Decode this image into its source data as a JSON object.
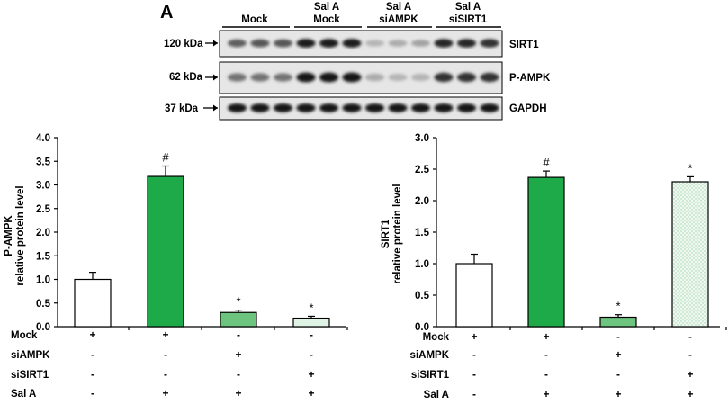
{
  "panel_label": "A",
  "blot": {
    "groups": [
      {
        "line1": "",
        "line2": "Mock"
      },
      {
        "line1": "Sal A",
        "line2": "Mock"
      },
      {
        "line1": "Sal A",
        "line2": "siAMPK"
      },
      {
        "line1": "Sal A",
        "line2": "siSIRT1"
      }
    ],
    "rows": [
      {
        "size": "120 kDa",
        "protein": "SIRT1",
        "intensity": [
          0.55,
          0.6,
          0.6,
          0.9,
          0.9,
          0.9,
          0.1,
          0.15,
          0.2,
          0.85,
          0.85,
          0.8
        ]
      },
      {
        "size": "62 kDa",
        "protein": "P-AMPK",
        "intensity": [
          0.45,
          0.45,
          0.45,
          0.95,
          0.95,
          0.95,
          0.15,
          0.1,
          0.1,
          0.8,
          0.8,
          0.8
        ]
      },
      {
        "size": "37 kDa",
        "protein": "GAPDH",
        "intensity": [
          0.95,
          0.95,
          0.95,
          0.95,
          0.95,
          0.95,
          0.95,
          0.95,
          0.95,
          0.95,
          0.95,
          0.95
        ]
      }
    ]
  },
  "conditions": [
    {
      "label": "Mock",
      "signs": [
        "+",
        "+",
        "-",
        "-"
      ]
    },
    {
      "label": "siAMPK",
      "signs": [
        "-",
        "-",
        "+",
        "-"
      ]
    },
    {
      "label": "siSIRT1",
      "signs": [
        "-",
        "-",
        "-",
        "+"
      ]
    },
    {
      "label": "Sal A",
      "signs": [
        "-",
        "+",
        "+",
        "+"
      ]
    }
  ],
  "colors": {
    "white": "#ffffff",
    "green_dark": "#1faa4a",
    "green_light": "#6cc47e",
    "green_pale": "#dff3e4",
    "axis": "#000000"
  },
  "chart_data": [
    {
      "type": "bar",
      "ylabel_line1": "P-AMPK",
      "ylabel_line2": "relative protein level",
      "ylim": [
        0,
        4.0
      ],
      "yticks": [
        "0.0",
        "0.5",
        "1.0",
        "1.5",
        "2.0",
        "2.5",
        "3.0",
        "3.5",
        "4.0"
      ],
      "values": [
        1.0,
        3.18,
        0.3,
        0.18
      ],
      "errors": [
        0.15,
        0.22,
        0.05,
        0.04
      ],
      "marks": [
        "",
        "#",
        "*",
        "*"
      ],
      "fills": [
        "#ffffff",
        "#1faa4a",
        "#6cc47e",
        "#dff3e4"
      ]
    },
    {
      "type": "bar",
      "ylabel_line1": "SIRT1",
      "ylabel_line2": "relative protein level",
      "ylim": [
        0,
        3.0
      ],
      "yticks": [
        "0.0",
        "0.5",
        "1.0",
        "1.5",
        "2.0",
        "2.5",
        "3.0"
      ],
      "values": [
        1.0,
        2.37,
        0.15,
        2.3
      ],
      "errors": [
        0.15,
        0.1,
        0.04,
        0.08
      ],
      "marks": [
        "",
        "#",
        "*",
        "*"
      ],
      "fills": [
        "#ffffff",
        "#1faa4a",
        "#6cc47e",
        "#dff3e4"
      ]
    }
  ]
}
